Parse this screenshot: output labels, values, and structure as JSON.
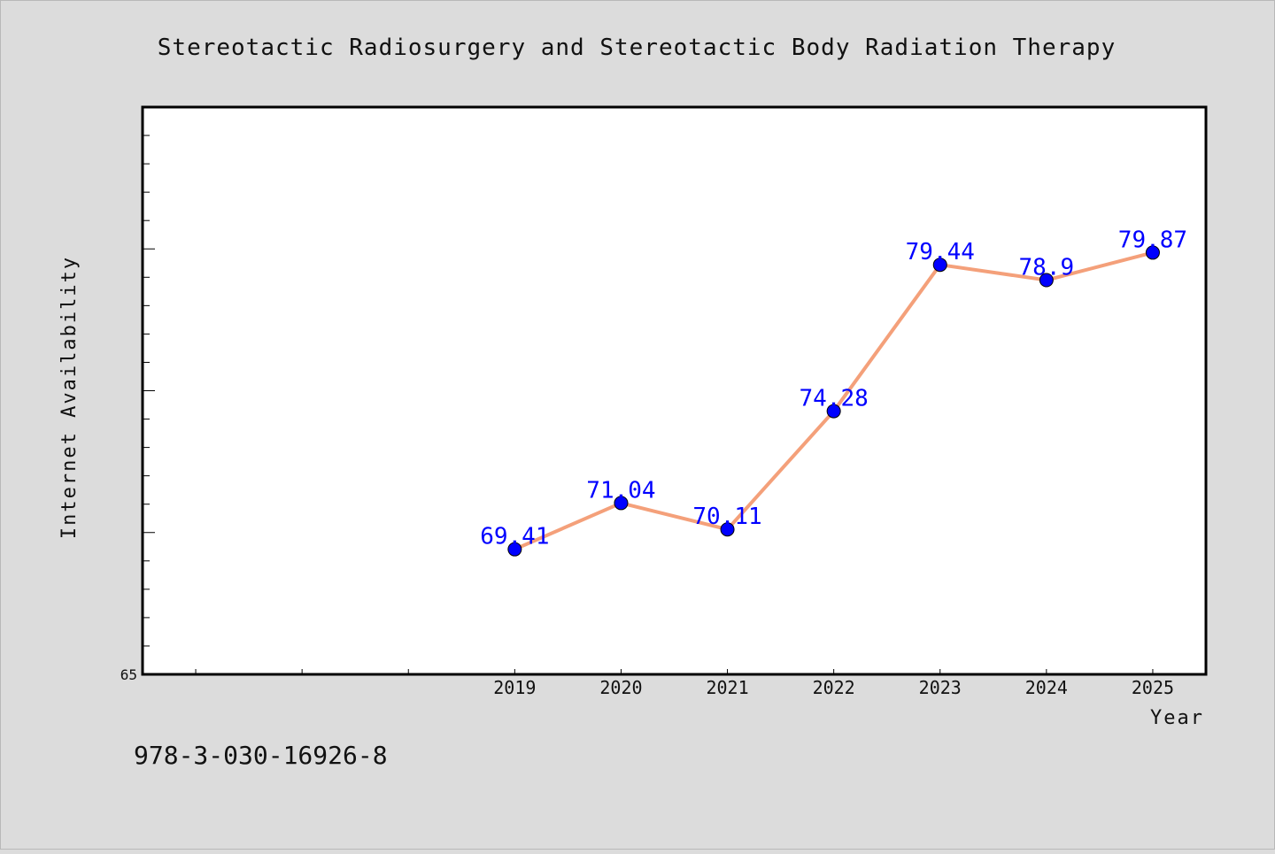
{
  "chart_data": {
    "type": "line",
    "title": "Stereotactic Radiosurgery and Stereotactic Body Radiation Therapy",
    "xlabel": "Year",
    "ylabel": "Internet Availability",
    "categories": [
      "2019",
      "2020",
      "2021",
      "2022",
      "2023",
      "2024",
      "2025"
    ],
    "x_slots": 10,
    "first_category_slot": 3,
    "series": [
      {
        "values": [
          69.41,
          71.04,
          70.11,
          74.28,
          79.44,
          78.9,
          79.87
        ]
      }
    ],
    "data_labels": [
      "69.41",
      "71.04",
      "70.11",
      "74.28",
      "79.44",
      "78.9",
      "79.87"
    ],
    "ylim": [
      65,
      85
    ],
    "yticks": [
      65
    ],
    "y_minor_step": 1,
    "grid": false,
    "legend": "none",
    "colors": {
      "line": "#f4a07a",
      "marker": "#0000ff",
      "label": "#0000ff",
      "background": "#dcdcdc",
      "plot_background": "#ffffff"
    }
  },
  "footer": {
    "code": "978-3-030-16926-8"
  }
}
